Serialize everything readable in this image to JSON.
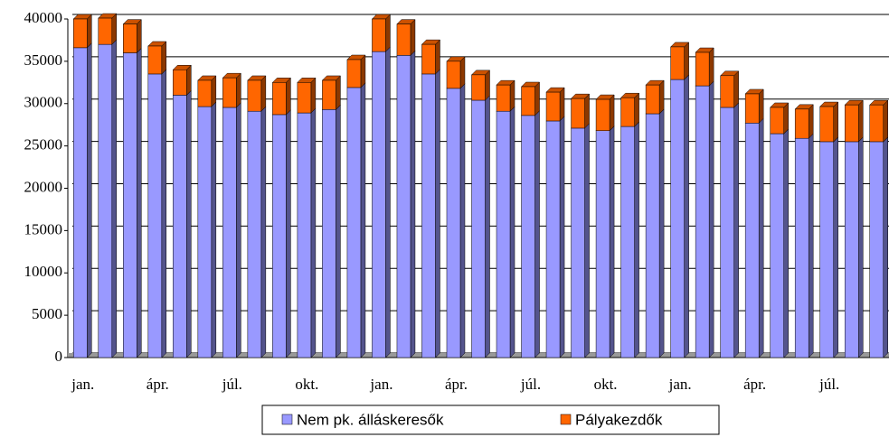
{
  "chart_data": {
    "type": "bar",
    "stacked": true,
    "categories": [
      "jan.",
      null,
      null,
      "ápr.",
      null,
      null,
      "júl.",
      null,
      null,
      "okt.",
      null,
      null,
      "jan.",
      null,
      null,
      "ápr.",
      null,
      null,
      "júl.",
      null,
      null,
      "okt.",
      null,
      null,
      "jan.",
      null,
      null,
      "ápr.",
      null,
      null,
      "júl.",
      null,
      null
    ],
    "series": [
      {
        "name": "Nem pk. álláskeresők",
        "color": "#9999ff",
        "values": [
          36600,
          37000,
          36000,
          33500,
          31000,
          29650,
          29550,
          29100,
          28700,
          28900,
          29300,
          31900,
          36150,
          35700,
          33500,
          31800,
          30400,
          29100,
          28600,
          27950,
          27100,
          26800,
          27300,
          28800,
          32850,
          32100,
          29550,
          27700,
          26450,
          25900,
          25500,
          25500,
          25500
        ]
      },
      {
        "name": "Pályakezdők",
        "color": "#ff6600",
        "values": [
          3400,
          3100,
          3400,
          3300,
          3000,
          3100,
          3500,
          3650,
          3800,
          3600,
          3450,
          3300,
          3850,
          3700,
          3500,
          3200,
          3000,
          3100,
          3400,
          3400,
          3500,
          3700,
          3400,
          3400,
          3850,
          3950,
          3750,
          3450,
          3100,
          3450,
          4150,
          4350,
          4350
        ]
      }
    ],
    "ylim": [
      0,
      40000
    ],
    "yticks": [
      0,
      5000,
      10000,
      15000,
      20000,
      25000,
      30000,
      35000,
      40000
    ],
    "grid": true,
    "legend": "bottom"
  }
}
